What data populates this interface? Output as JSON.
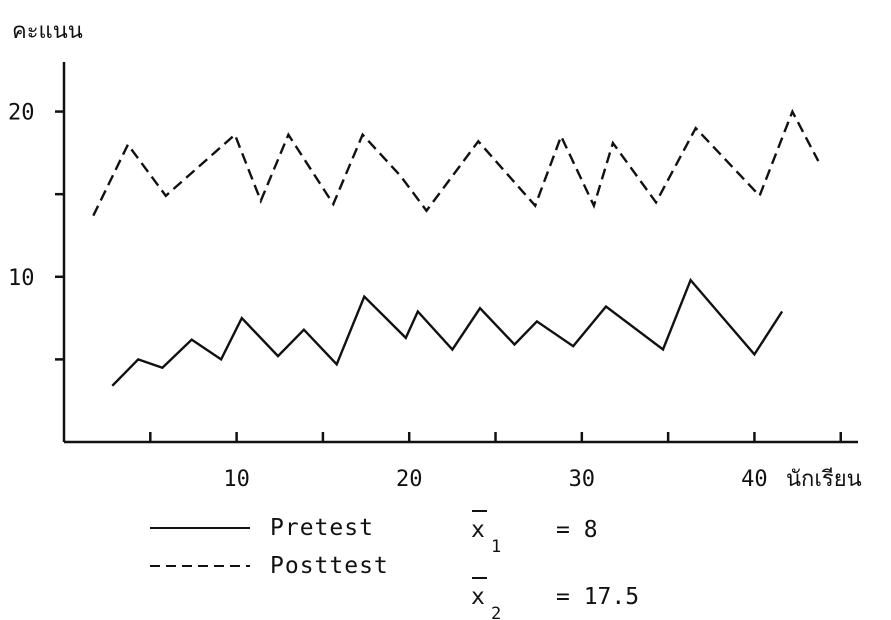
{
  "chart_data": {
    "type": "line",
    "ylabel": "คะแนน",
    "xlabel": "นักเรียน",
    "xlim": [
      0,
      46
    ],
    "ylim": [
      0,
      23
    ],
    "x_ticks": [
      5,
      10,
      15,
      20,
      25,
      30,
      35,
      40,
      45
    ],
    "x_tick_labels": [
      "10",
      "20",
      "30",
      "40"
    ],
    "x_tick_label_values": [
      10,
      20,
      30,
      40
    ],
    "y_ticks": [
      5,
      10,
      15,
      20
    ],
    "y_tick_labels": [
      "10",
      "20"
    ],
    "y_tick_label_values": [
      10,
      20
    ],
    "grid": false,
    "legend_position": "bottom-left",
    "series": [
      {
        "name": "Pretest",
        "style": "solid",
        "x": [
          2.8,
          4.3,
          5.7,
          7.4,
          9.1,
          10.3,
          12.4,
          13.9,
          15.8,
          17.4,
          19.8,
          20.5,
          22.5,
          24.1,
          26.1,
          27.4,
          29.5,
          31.4,
          34.7,
          36.3,
          40,
          41.6
        ],
        "y": [
          3.4,
          5,
          4.5,
          6.2,
          5,
          7.5,
          5.2,
          6.8,
          4.7,
          8.8,
          6.3,
          7.9,
          5.6,
          8.1,
          5.9,
          7.3,
          5.8,
          8.2,
          5.6,
          9.8,
          5.3,
          7.9
        ]
      },
      {
        "name": "Posttest",
        "style": "dashed",
        "x": [
          1.7,
          3.7,
          5.9,
          9.9,
          11.4,
          13,
          15.6,
          17.3,
          19.5,
          21,
          24,
          27.3,
          28.8,
          30.7,
          31.8,
          34.3,
          36.6,
          40.3,
          42.2,
          43.7
        ],
        "y": [
          13.7,
          18,
          14.9,
          18.6,
          14.6,
          18.6,
          14.4,
          18.6,
          16.1,
          14,
          18.2,
          14.3,
          18.5,
          14.3,
          18.1,
          14.5,
          19,
          14.9,
          20,
          17
        ]
      }
    ],
    "annotations": [
      {
        "symbol": "x",
        "subscript": "1",
        "equals": "= 8"
      },
      {
        "symbol": "x",
        "subscript": "2",
        "equals": "= 17.5"
      }
    ]
  }
}
